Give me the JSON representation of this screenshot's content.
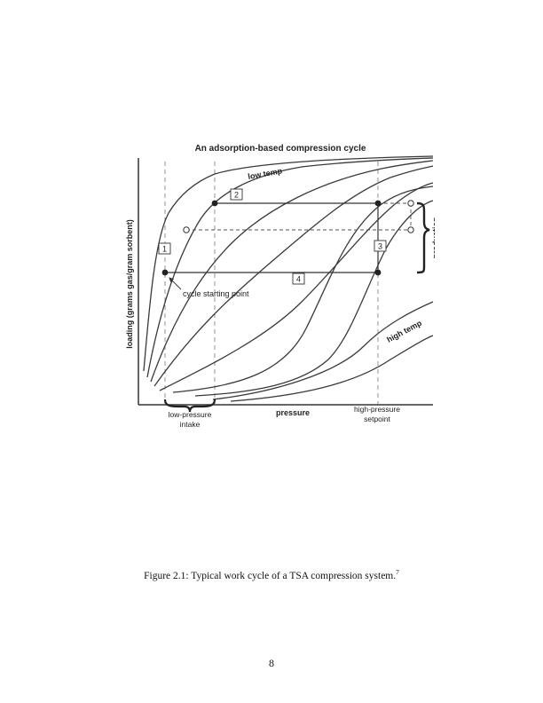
{
  "figure": {
    "title": "An adsorption-based compression cycle",
    "y_axis_label": "loading (grams gas/gram sorbent)",
    "x_axis_label": "pressure",
    "right_label": "production",
    "low_temp_label": "low temp",
    "high_temp_label": "high temp",
    "start_label": "cycle starting point",
    "step_labels": [
      "1",
      "2",
      "3",
      "4"
    ],
    "intake_label_line1": "low-pressure",
    "intake_label_line2": "intake",
    "setpoint_label_line1": "high-pressure",
    "setpoint_label_line2": "setpoint"
  },
  "caption": {
    "text": "Figure 2.1: Typical work cycle of a TSA compression system.",
    "ref": "7"
  },
  "page_number": "8"
}
